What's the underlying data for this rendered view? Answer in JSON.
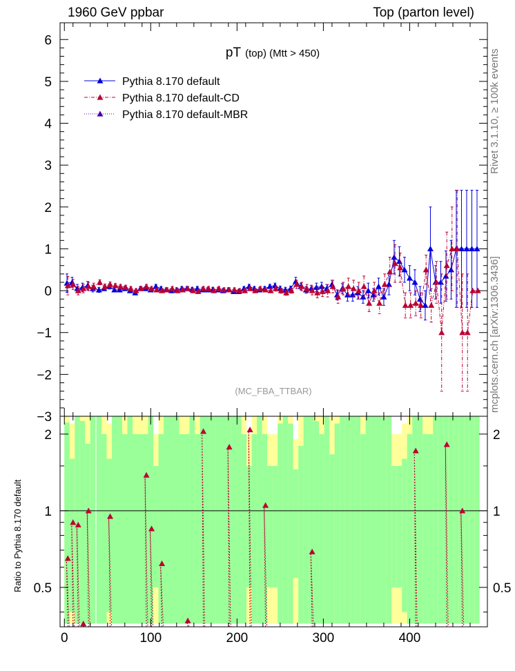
{
  "header": {
    "left": "1960 GeV ppbar",
    "right": "Top (parton level)"
  },
  "side": {
    "rivet": "Rivet 3.1.10, ≥ 100k events",
    "url": "mcplots.cern.ch [arXiv:1306.3436]"
  },
  "chart_data": {
    "type": "line",
    "title_main": "pT",
    "title_sub": "(top) (Mtt > 450)",
    "watermark": "(MC_FBA_TTBAR)",
    "top_panel": {
      "ylim": [
        -3,
        6.4
      ],
      "y_ticks": [
        -3,
        -2,
        -1,
        0,
        1,
        2,
        3,
        4,
        5,
        6
      ],
      "y_tick_labels": [
        "−3",
        "−2",
        "−1",
        "0",
        "1",
        "2",
        "3",
        "4",
        "5",
        "6"
      ]
    },
    "xlim": [
      -5,
      490
    ],
    "x_ticks": [
      0,
      100,
      200,
      300,
      400
    ],
    "x_tick_labels": [
      "0",
      "100",
      "200",
      "300",
      "400"
    ],
    "legend": [
      {
        "label": "Pythia 8.170 default",
        "color": "#0000dd",
        "dash": "",
        "marker": "triangle"
      },
      {
        "label": "Pythia 8.170 default-CD",
        "color": "#bb0033",
        "dash": "5,2,1,2",
        "marker": "triangle"
      },
      {
        "label": "Pythia 8.170 default-MBR",
        "color": "#4400aa",
        "dash": "1,2",
        "marker": "triangle"
      }
    ],
    "series": [
      {
        "name": "Pythia 8.170 default",
        "x": [
          3,
          9,
          15,
          21,
          27,
          33,
          40,
          46,
          52,
          58,
          64,
          70,
          76,
          82,
          88,
          94,
          100,
          106,
          112,
          118,
          124,
          130,
          136,
          142,
          148,
          154,
          160,
          166,
          172,
          178,
          184,
          190,
          196,
          202,
          208,
          214,
          220,
          226,
          232,
          238,
          244,
          250,
          256,
          262,
          268,
          274,
          280,
          286,
          292,
          298,
          304,
          310,
          316,
          322,
          328,
          334,
          340,
          346,
          352,
          358,
          364,
          370,
          376,
          382,
          388,
          394,
          400,
          406,
          412,
          418,
          424,
          430,
          436,
          442,
          448,
          454,
          460,
          466,
          472,
          478
        ],
        "y": [
          0.18,
          0.2,
          0.05,
          0.08,
          0.12,
          0.05,
          0.02,
          0.05,
          0.1,
          0.02,
          0.02,
          0.05,
          0.0,
          -0.05,
          0.05,
          0.05,
          0.02,
          0.1,
          0.05,
          0.02,
          0.0,
          0.02,
          0.05,
          0.05,
          0.03,
          0.05,
          0.02,
          0.02,
          0.03,
          0.02,
          0.0,
          0.02,
          -0.02,
          -0.02,
          0.05,
          0.1,
          0.05,
          0.02,
          0.05,
          0.1,
          0.12,
          0.05,
          0.02,
          0.05,
          0.22,
          0.1,
          0.02,
          0.05,
          0.08,
          0.1,
          0.05,
          0.15,
          -0.1,
          0.05,
          -0.1,
          -0.1,
          -0.05,
          -0.15,
          0.0,
          -0.1,
          0.1,
          -0.15,
          0.15,
          0.8,
          0.7,
          0.5,
          0.3,
          0.2,
          -0.2,
          -0.35,
          1.0,
          0.2,
          0.2,
          0.35,
          0.5,
          1.0,
          1.0,
          1.0,
          1.0,
          1.0
        ],
        "err": [
          0.22,
          0.12,
          0.1,
          0.1,
          0.1,
          0.08,
          0.06,
          0.05,
          0.06,
          0.05,
          0.05,
          0.05,
          0.05,
          0.05,
          0.05,
          0.05,
          0.05,
          0.05,
          0.05,
          0.05,
          0.05,
          0.05,
          0.05,
          0.05,
          0.05,
          0.05,
          0.05,
          0.05,
          0.05,
          0.05,
          0.05,
          0.05,
          0.05,
          0.05,
          0.05,
          0.05,
          0.05,
          0.05,
          0.05,
          0.05,
          0.06,
          0.06,
          0.06,
          0.06,
          0.1,
          0.08,
          0.08,
          0.08,
          0.1,
          0.1,
          0.1,
          0.1,
          0.12,
          0.12,
          0.15,
          0.15,
          0.15,
          0.15,
          0.18,
          0.15,
          0.2,
          0.2,
          0.25,
          0.4,
          0.35,
          0.3,
          0.3,
          0.3,
          0.3,
          0.35,
          1.0,
          0.4,
          0.5,
          0.6,
          0.7,
          1.4,
          1.4,
          1.4,
          1.4,
          1.4
        ]
      },
      {
        "name": "Pythia 8.170 default-CD",
        "x": [
          4,
          10,
          16,
          22,
          28,
          34,
          41,
          47,
          53,
          59,
          65,
          71,
          77,
          83,
          89,
          95,
          101,
          107,
          113,
          119,
          125,
          131,
          137,
          143,
          149,
          155,
          161,
          167,
          173,
          179,
          185,
          191,
          197,
          203,
          209,
          215,
          221,
          227,
          233,
          239,
          245,
          251,
          257,
          263,
          269,
          275,
          281,
          287,
          293,
          299,
          305,
          311,
          317,
          323,
          329,
          335,
          341,
          347,
          353,
          359,
          365,
          371,
          377,
          383,
          389,
          395,
          401,
          407,
          413,
          419,
          425,
          431,
          437,
          443,
          449,
          455,
          461,
          467,
          473,
          479
        ],
        "y": [
          0.12,
          0.15,
          0.0,
          0.05,
          0.1,
          0.1,
          0.2,
          0.1,
          0.15,
          0.12,
          0.1,
          0.08,
          0.05,
          0.0,
          0.05,
          0.1,
          0.05,
          0.02,
          0.0,
          0.02,
          0.05,
          0.0,
          0.02,
          0.05,
          0.0,
          -0.02,
          0.05,
          0.05,
          0.0,
          0.05,
          0.02,
          0.02,
          0.02,
          0.0,
          0.0,
          0.05,
          0.0,
          0.05,
          0.02,
          0.0,
          0.05,
          0.0,
          -0.05,
          0.0,
          0.15,
          0.1,
          0.05,
          0.0,
          -0.05,
          -0.02,
          0.0,
          0.1,
          -0.15,
          0.05,
          0.1,
          0.05,
          0.0,
          0.1,
          -0.3,
          0.0,
          -0.3,
          0.15,
          0.45,
          0.65,
          0.55,
          -0.35,
          -0.35,
          -0.3,
          -0.35,
          0.5,
          -0.35,
          0.2,
          -1.0,
          0.6,
          1.0,
          1.0,
          -1.0,
          -1.0,
          0.0,
          0.0
        ],
        "err": [
          0.22,
          0.12,
          0.1,
          0.1,
          0.1,
          0.08,
          0.06,
          0.06,
          0.06,
          0.05,
          0.05,
          0.05,
          0.05,
          0.05,
          0.05,
          0.05,
          0.05,
          0.05,
          0.05,
          0.05,
          0.05,
          0.05,
          0.05,
          0.05,
          0.05,
          0.05,
          0.05,
          0.05,
          0.05,
          0.05,
          0.05,
          0.05,
          0.05,
          0.05,
          0.05,
          0.05,
          0.05,
          0.05,
          0.05,
          0.05,
          0.06,
          0.06,
          0.06,
          0.06,
          0.1,
          0.1,
          0.1,
          0.1,
          0.12,
          0.12,
          0.15,
          0.15,
          0.15,
          0.15,
          0.2,
          0.2,
          0.2,
          0.25,
          0.2,
          0.2,
          0.25,
          0.25,
          0.35,
          0.45,
          0.35,
          0.3,
          0.3,
          0.3,
          0.3,
          0.35,
          0.4,
          0.5,
          1.4,
          0.8,
          1.0,
          1.4,
          1.4,
          1.4,
          0.0,
          0.0
        ]
      }
    ],
    "ratio_panel": {
      "ylabel": "Ratio to Pythia 8.170 default",
      "ylim": [
        0.35,
        2.35
      ],
      "y_ticks": [
        0.5,
        1,
        2
      ],
      "y_tick_labels": [
        "0.5",
        "1",
        "2"
      ],
      "points": {
        "x": [
          4,
          10,
          16,
          22,
          28,
          53,
          95,
          101,
          113,
          143,
          161,
          191,
          215,
          233,
          287,
          407,
          443,
          461
        ],
        "y": [
          0.65,
          0.9,
          0.88,
          0.36,
          1.0,
          0.95,
          1.38,
          0.85,
          0.62,
          0.37,
          2.05,
          1.78,
          2.08,
          1.05,
          0.69,
          1.72,
          1.82,
          1.0
        ]
      }
    }
  }
}
